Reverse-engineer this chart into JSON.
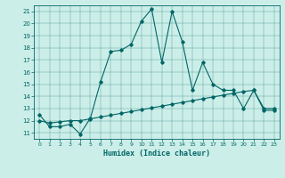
{
  "xlabel": "Humidex (Indice chaleur)",
  "background_color": "#cceee8",
  "line_color": "#006666",
  "xlim": [
    -0.5,
    23.5
  ],
  "ylim": [
    10.5,
    21.5
  ],
  "yticks": [
    11,
    12,
    13,
    14,
    15,
    16,
    17,
    18,
    19,
    20,
    21
  ],
  "xticks": [
    0,
    1,
    2,
    3,
    4,
    5,
    6,
    7,
    8,
    9,
    10,
    11,
    12,
    13,
    14,
    15,
    16,
    17,
    18,
    19,
    20,
    21,
    22,
    23
  ],
  "series1_x": [
    0,
    1,
    2,
    3,
    4,
    5,
    6,
    7,
    8,
    9,
    10,
    11,
    12,
    13,
    14,
    15,
    16,
    17,
    18,
    19,
    20,
    21,
    22,
    23
  ],
  "series1_y": [
    12.5,
    11.5,
    11.5,
    11.7,
    10.9,
    12.2,
    15.2,
    17.7,
    17.8,
    18.3,
    20.2,
    21.2,
    16.8,
    21.0,
    18.5,
    14.5,
    16.8,
    15.0,
    14.5,
    14.5,
    13.0,
    14.5,
    13.0,
    13.0
  ],
  "series2_x": [
    0,
    1,
    2,
    3,
    4,
    5,
    6,
    7,
    8,
    9,
    10,
    11,
    12,
    13,
    14,
    15,
    16,
    17,
    18,
    19,
    20,
    21,
    22,
    23
  ],
  "series2_y": [
    12.0,
    11.8,
    11.9,
    12.0,
    12.0,
    12.15,
    12.3,
    12.45,
    12.6,
    12.75,
    12.9,
    13.05,
    13.2,
    13.35,
    13.5,
    13.65,
    13.8,
    13.95,
    14.1,
    14.25,
    14.4,
    14.5,
    12.85,
    12.85
  ]
}
